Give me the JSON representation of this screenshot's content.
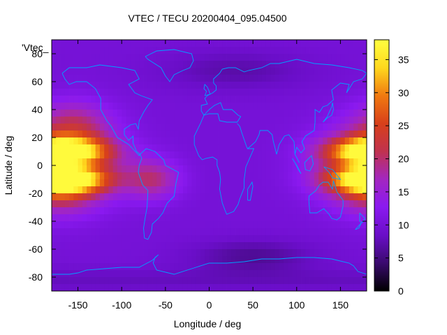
{
  "chart_data": {
    "type": "heatmap",
    "title": "VTEC / TECU 20200404_095.04500",
    "xlabel": "Longitude / deg",
    "ylabel": "Latitude / deg",
    "legend_key": "'Vtec_",
    "xlim": [
      -180,
      180
    ],
    "ylim": [
      -90,
      90
    ],
    "xticks": [
      -150,
      -100,
      -50,
      0,
      50,
      100,
      150
    ],
    "yticks": [
      -80,
      -60,
      -40,
      -20,
      0,
      20,
      40,
      60,
      80
    ],
    "colorbar": {
      "range": [
        0,
        38
      ],
      "ticks": [
        0,
        5,
        10,
        15,
        20,
        25,
        30,
        35
      ],
      "palette_stops": [
        "#000000",
        "#3a0a6e",
        "#6a0ec8",
        "#8a19f0",
        "#a327c0",
        "#c0324f",
        "#d8401a",
        "#f07a10",
        "#ffd81e",
        "#ffff40"
      ]
    },
    "grid_resolution_deg": {
      "lon": 5,
      "lat": 5
    },
    "features": [
      {
        "name": "pacific-equatorial-peak",
        "lon_center": -165,
        "lat_north": 10,
        "lat_south": -10,
        "peak": 38
      },
      {
        "name": "west-pacific-maximum",
        "lon_center": 170,
        "lat_center": 0,
        "peak": 33
      },
      {
        "name": "south-atlantic-arm",
        "lon_center": -70,
        "lat_center": -10,
        "peak": 20
      },
      {
        "name": "nightside-minimum-europe",
        "lon_center": 30,
        "lat_center": 65,
        "value": 5
      },
      {
        "name": "nightside-minimum-antarctic",
        "lon_center": 50,
        "lat_center": -65,
        "value": 4
      }
    ],
    "coastline_color": "#00a0ff"
  }
}
